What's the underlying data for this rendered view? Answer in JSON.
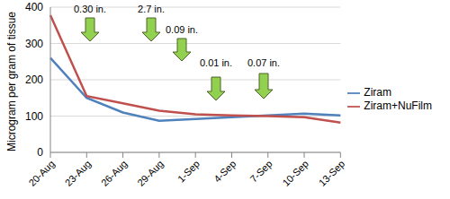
{
  "chart_data": {
    "type": "line",
    "y_label": "Microgram per gram of tissue",
    "categories": [
      "20-Aug",
      "23-Aug",
      "26-Aug",
      "29-Aug",
      "1-Sep",
      "4-Sep",
      "7-Sep",
      "10-Sep",
      "13-Sep"
    ],
    "series": [
      {
        "name": "Ziram",
        "color": "#4f81bd",
        "values": [
          260,
          150,
          110,
          87,
          92,
          97,
          102,
          107,
          102
        ]
      },
      {
        "name": "Ziram+NuFilm",
        "color": "#c0504d",
        "values": [
          378,
          155,
          135,
          115,
          105,
          102,
          100,
          97,
          82
        ]
      }
    ],
    "ylim": [
      0,
      400
    ],
    "yticks": [
      0,
      100,
      200,
      300,
      400
    ],
    "grid": true,
    "legend": "right",
    "annotations": [
      "0.30 in.",
      "2.7 in.",
      "0.09 in.",
      "0.01 in.",
      "0.07 in."
    ]
  }
}
